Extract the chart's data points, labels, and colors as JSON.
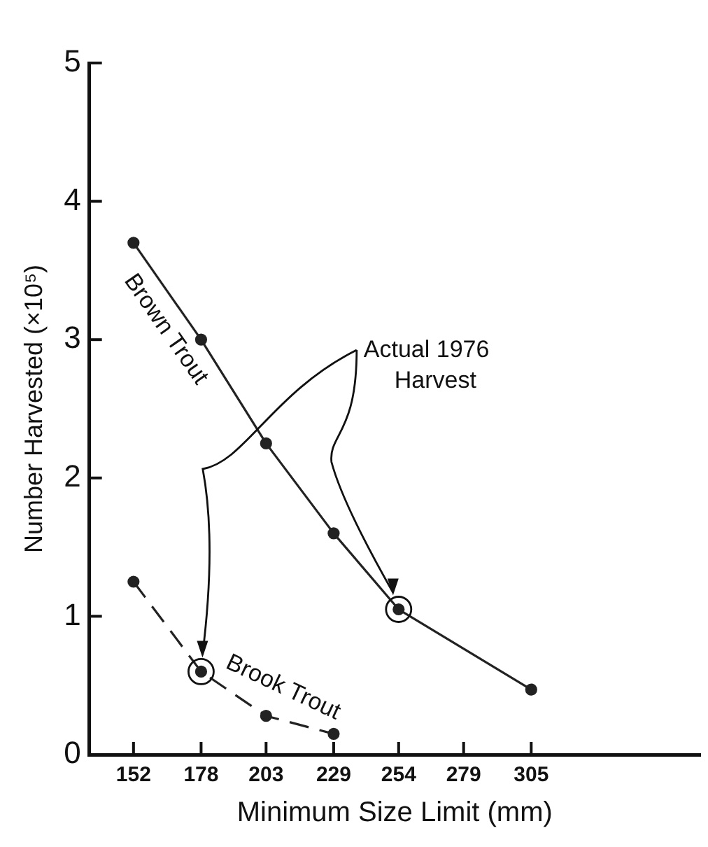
{
  "chart_data": {
    "type": "line",
    "xlabel": "Minimum Size Limit (mm)",
    "ylabel": "Number Harvested (×10⁵)",
    "xlim": [
      135,
      370
    ],
    "xticks": [
      152,
      178,
      203,
      229,
      254,
      279,
      305
    ],
    "ylim": [
      0,
      5
    ],
    "yticks": [
      0,
      1,
      2,
      3,
      4,
      5
    ],
    "grid": false,
    "legend": false,
    "marker": "circle",
    "series": [
      {
        "name": "Brown Trout",
        "color": "#222222",
        "line_style": "solid",
        "x": [
          152,
          178,
          203,
          229,
          254,
          305
        ],
        "values": [
          3.7,
          3.0,
          2.25,
          1.6,
          1.05,
          0.47
        ]
      },
      {
        "name": "Brook Trout",
        "color": "#222222",
        "line_style": "dashed",
        "x": [
          152,
          178,
          203,
          229
        ],
        "values": [
          1.25,
          0.6,
          0.28,
          0.15
        ]
      }
    ],
    "annotations": [
      "Actual 1976\nHarvest"
    ]
  }
}
